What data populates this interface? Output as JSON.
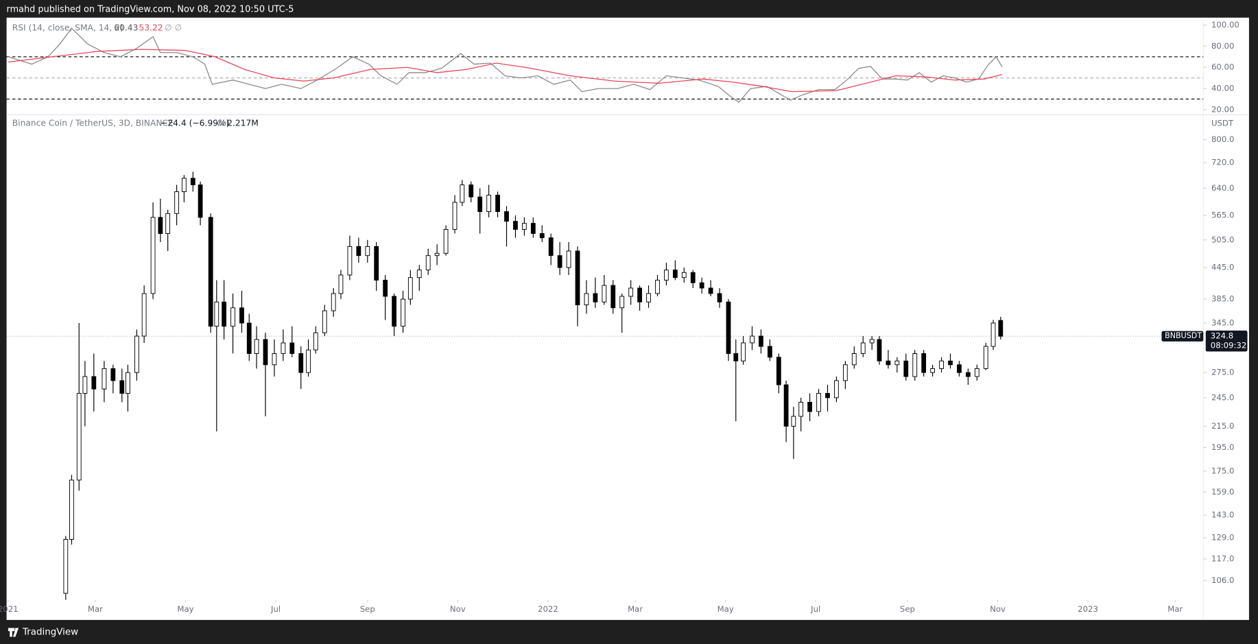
{
  "header": "rmahd published on TradingView.com, Nov 08, 2022 10:50 UTC-5",
  "footer": "TradingView",
  "chart_data": [
    {
      "type": "line",
      "title": "RSI (14, close, SMA, 14, 2)",
      "extra": "∅ ∅",
      "xlim": [
        -1,
        808
      ],
      "ylim": [
        16,
        107
      ],
      "yticks": [
        {
          "value": 100,
          "label": "100.00"
        },
        {
          "value": 80,
          "label": "80.00"
        },
        {
          "value": 60,
          "label": "60.00"
        },
        {
          "value": 40,
          "label": "40.00"
        },
        {
          "value": 20,
          "label": "20.00"
        }
      ],
      "levels": [
        {
          "value": 70,
          "color": "#000000"
        },
        {
          "value": 50,
          "color": "#b0b0b0"
        },
        {
          "value": 30,
          "color": "#000000"
        }
      ],
      "series": [
        {
          "color": "#8a8a8a",
          "x": [
            0,
            16,
            27,
            35,
            43,
            54,
            65,
            76,
            87,
            98,
            103,
            114,
            125,
            133,
            138,
            152,
            163,
            174,
            185,
            198,
            209,
            222,
            233,
            244,
            252,
            263,
            271,
            282,
            293,
            306,
            315,
            326,
            336,
            347,
            358,
            369,
            380,
            388,
            399,
            412,
            423,
            434,
            445,
            456,
            467,
            480,
            488,
            494,
            502,
            513,
            524,
            529,
            537,
            548,
            559,
            567,
            575,
            583,
            591,
            599,
            608,
            616,
            624,
            632,
            640,
            648,
            656,
            663,
            668,
            672
          ],
          "values": [
            70,
            63,
            70,
            82,
            97,
            82,
            74,
            70,
            78,
            89,
            74,
            74,
            70,
            63,
            44,
            48,
            44,
            40,
            44,
            40,
            48,
            59,
            70,
            63,
            52,
            44,
            55,
            55,
            59,
            73,
            63,
            64,
            52,
            50,
            52,
            44,
            48,
            37,
            40,
            40,
            44,
            39,
            52,
            50,
            48,
            42,
            33,
            27,
            40,
            42,
            33,
            29,
            34,
            39,
            39,
            48,
            59,
            61,
            49,
            49,
            48,
            55,
            46,
            52,
            50,
            46,
            49,
            63,
            70,
            60.43
          ]
        },
        {
          "color": "#e8445a",
          "x": [
            0,
            30,
            60,
            90,
            120,
            140,
            160,
            180,
            200,
            220,
            245,
            270,
            290,
            310,
            330,
            350,
            380,
            410,
            440,
            470,
            490,
            510,
            530,
            560,
            580,
            600,
            620,
            640,
            660,
            672
          ],
          "values": [
            65,
            70,
            75,
            77,
            76,
            70,
            58,
            50,
            47,
            50,
            58,
            60,
            55,
            58,
            64,
            60,
            52,
            47,
            45,
            49,
            46,
            42,
            37,
            38,
            45,
            52,
            51,
            48,
            49,
            53.22
          ]
        }
      ]
    },
    {
      "type": "candlestick",
      "title": "Binance Coin / TetherUS, 3D, BINANCE",
      "change": "−24.4 (−6.99%)",
      "volume_label": "Vol",
      "volume": "2.217M",
      "unit": "USDT",
      "symbol": "BNBUSDT",
      "countdown": "08:09:32",
      "log_scale": true,
      "xlim": [
        -1,
        808
      ],
      "ylim": [
        97,
        890
      ],
      "up_color": "#ffffff",
      "down_color": "#000000",
      "yticks": [
        {
          "value": 106,
          "label": "106.0"
        },
        {
          "value": 117,
          "label": "117.0"
        },
        {
          "value": 129,
          "label": "129.0"
        },
        {
          "value": 143,
          "label": "143.0"
        },
        {
          "value": 159,
          "label": "159.0"
        },
        {
          "value": 175,
          "label": "175.0"
        },
        {
          "value": 195,
          "label": "195.0"
        },
        {
          "value": 215,
          "label": "215.0"
        },
        {
          "value": 245,
          "label": "245.0"
        },
        {
          "value": 275,
          "label": "275.0"
        },
        {
          "value": 345,
          "label": "345.0"
        },
        {
          "value": 385,
          "label": "385.0"
        },
        {
          "value": 445,
          "label": "445.0"
        },
        {
          "value": 505,
          "label": "505.0"
        },
        {
          "value": 565,
          "label": "565.0"
        },
        {
          "value": 640,
          "label": "640.0"
        },
        {
          "value": 720,
          "label": "720.0"
        },
        {
          "value": 800,
          "label": "800.0"
        }
      ],
      "xticks": [
        {
          "value": 0,
          "label": "2021"
        },
        {
          "value": 59,
          "label": "Mar"
        },
        {
          "value": 120,
          "label": "May"
        },
        {
          "value": 181,
          "label": "Jul"
        },
        {
          "value": 243,
          "label": "Sep"
        },
        {
          "value": 304,
          "label": "Nov"
        },
        {
          "value": 365,
          "label": "2022"
        },
        {
          "value": 424,
          "label": "Mar"
        },
        {
          "value": 485,
          "label": "May"
        },
        {
          "value": 546,
          "label": "Jul"
        },
        {
          "value": 608,
          "label": "Sep"
        },
        {
          "value": 669,
          "label": "Nov"
        },
        {
          "value": 730,
          "label": "2023"
        },
        {
          "value": 789,
          "label": "Mar"
        }
      ],
      "x": [
        39,
        43,
        48,
        52,
        58,
        65,
        71,
        77,
        81,
        87,
        92,
        98,
        103,
        108,
        114,
        119,
        125,
        130,
        137,
        141,
        146,
        152,
        158,
        163,
        168,
        174,
        180,
        186,
        192,
        198,
        203,
        208,
        214,
        220,
        225,
        231,
        237,
        243,
        249,
        255,
        261,
        267,
        272,
        278,
        284,
        290,
        296,
        302,
        307,
        313,
        319,
        325,
        331,
        337,
        343,
        349,
        355,
        361,
        367,
        373,
        379,
        385,
        391,
        397,
        403,
        409,
        415,
        421,
        427,
        433,
        439,
        445,
        451,
        457,
        463,
        469,
        475,
        481,
        487,
        492,
        497,
        503,
        509,
        515,
        521,
        526,
        531,
        536,
        542,
        548,
        554,
        560,
        566,
        572,
        578,
        584,
        589,
        595,
        601,
        607,
        613,
        619,
        625,
        631,
        637,
        643,
        649,
        655,
        661,
        666,
        671
      ],
      "open": [
        100,
        128,
        168,
        250,
        270,
        255,
        280,
        265,
        250,
        275,
        325,
        395,
        560,
        520,
        570,
        630,
        670,
        650,
        560,
        340,
        380,
        340,
        370,
        345,
        300,
        320,
        285,
        300,
        315,
        300,
        275,
        305,
        330,
        365,
        395,
        430,
        490,
        470,
        490,
        420,
        390,
        340,
        385,
        425,
        440,
        470,
        475,
        530,
        600,
        650,
        615,
        575,
        620,
        575,
        550,
        530,
        545,
        520,
        510,
        470,
        445,
        480,
        375,
        395,
        380,
        410,
        370,
        390,
        405,
        380,
        395,
        420,
        440,
        425,
        435,
        415,
        405,
        395,
        380,
        300,
        290,
        315,
        325,
        310,
        295,
        260,
        215,
        225,
        240,
        230,
        250,
        245,
        265,
        285,
        300,
        315,
        320,
        290,
        285,
        290,
        270,
        300,
        275,
        280,
        290,
        285,
        275,
        270,
        280,
        310,
        349.2
      ],
      "high": [
        130,
        172,
        345,
        290,
        300,
        290,
        285,
        280,
        285,
        335,
        410,
        600,
        610,
        580,
        650,
        680,
        690,
        660,
        570,
        420,
        420,
        395,
        400,
        360,
        340,
        330,
        320,
        335,
        340,
        310,
        320,
        340,
        375,
        405,
        440,
        515,
        510,
        505,
        500,
        430,
        395,
        400,
        440,
        450,
        485,
        495,
        540,
        620,
        665,
        660,
        640,
        650,
        630,
        590,
        565,
        560,
        560,
        540,
        520,
        500,
        500,
        490,
        420,
        425,
        430,
        420,
        395,
        420,
        410,
        410,
        430,
        455,
        460,
        445,
        440,
        425,
        420,
        405,
        385,
        320,
        325,
        340,
        335,
        320,
        300,
        265,
        235,
        245,
        250,
        255,
        260,
        270,
        290,
        310,
        325,
        325,
        325,
        305,
        295,
        300,
        305,
        305,
        285,
        295,
        300,
        290,
        280,
        285,
        315,
        350,
        355
      ],
      "low": [
        97,
        125,
        160,
        215,
        230,
        240,
        250,
        240,
        230,
        265,
        315,
        385,
        500,
        480,
        540,
        600,
        630,
        540,
        330,
        210,
        320,
        300,
        330,
        290,
        280,
        225,
        270,
        290,
        295,
        255,
        270,
        300,
        325,
        355,
        385,
        420,
        455,
        455,
        400,
        350,
        325,
        330,
        375,
        400,
        430,
        450,
        470,
        520,
        590,
        600,
        520,
        560,
        560,
        490,
        510,
        515,
        510,
        500,
        450,
        430,
        430,
        340,
        360,
        370,
        375,
        360,
        330,
        375,
        365,
        370,
        390,
        410,
        420,
        415,
        405,
        395,
        390,
        370,
        290,
        220,
        285,
        305,
        300,
        290,
        250,
        200,
        185,
        210,
        220,
        225,
        230,
        240,
        255,
        280,
        295,
        305,
        285,
        280,
        275,
        265,
        265,
        270,
        270,
        275,
        280,
        270,
        260,
        265,
        278,
        305,
        320
      ],
      "close": [
        128,
        168,
        250,
        270,
        255,
        280,
        265,
        250,
        275,
        325,
        395,
        560,
        520,
        570,
        630,
        670,
        650,
        560,
        340,
        380,
        340,
        370,
        345,
        300,
        320,
        285,
        300,
        315,
        300,
        275,
        305,
        330,
        365,
        395,
        430,
        490,
        470,
        490,
        420,
        390,
        340,
        385,
        425,
        440,
        470,
        475,
        530,
        600,
        650,
        615,
        575,
        620,
        575,
        550,
        530,
        545,
        520,
        510,
        470,
        445,
        480,
        375,
        395,
        380,
        410,
        370,
        390,
        405,
        380,
        395,
        420,
        440,
        425,
        435,
        415,
        405,
        395,
        380,
        300,
        290,
        315,
        325,
        310,
        295,
        260,
        215,
        225,
        240,
        230,
        250,
        245,
        265,
        285,
        300,
        315,
        320,
        290,
        285,
        290,
        270,
        300,
        275,
        280,
        290,
        285,
        275,
        270,
        280,
        310,
        345,
        324.8
      ]
    }
  ]
}
